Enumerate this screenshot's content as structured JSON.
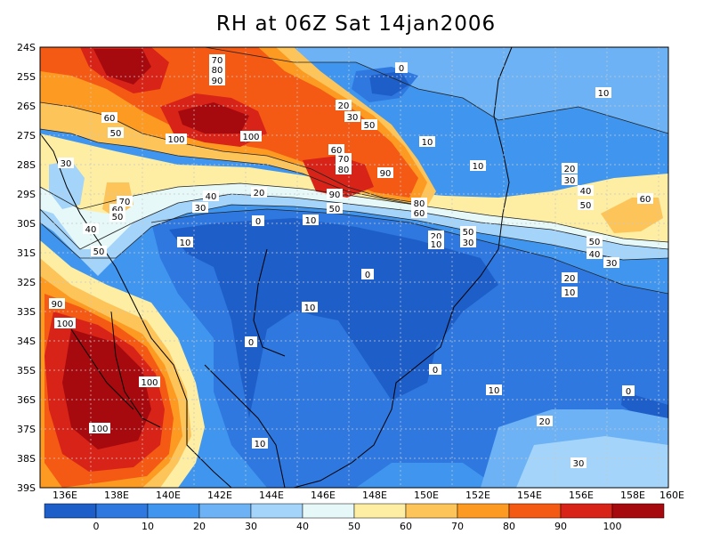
{
  "title": "RH at 06Z Sat 14jan2006",
  "colorbar": {
    "colors": [
      "#1e5ec8",
      "#2e78e0",
      "#4096ee",
      "#6cb2f4",
      "#a4d4fa",
      "#e6f8f8",
      "#fdeea4",
      "#fdc45a",
      "#fd9a22",
      "#f45a14",
      "#d82418",
      "#a60a0e"
    ],
    "labels": [
      "0",
      "10",
      "20",
      "30",
      "40",
      "50",
      "60",
      "70",
      "80",
      "90",
      "100"
    ]
  },
  "axes": {
    "x_ticks": [
      "136E",
      "138E",
      "140E",
      "142E",
      "144E",
      "146E",
      "148E",
      "150E",
      "152E",
      "154E",
      "156E",
      "158E",
      "160E"
    ],
    "y_ticks": [
      "24S",
      "25S",
      "26S",
      "27S",
      "28S",
      "29S",
      "30S",
      "31S",
      "32S",
      "33S",
      "34S",
      "35S",
      "36S",
      "37S",
      "38S",
      "39S"
    ]
  },
  "contour_labels": [
    "0",
    "10",
    "100",
    "90",
    "80",
    "70",
    "60",
    "50",
    "40",
    "30",
    "20"
  ]
}
